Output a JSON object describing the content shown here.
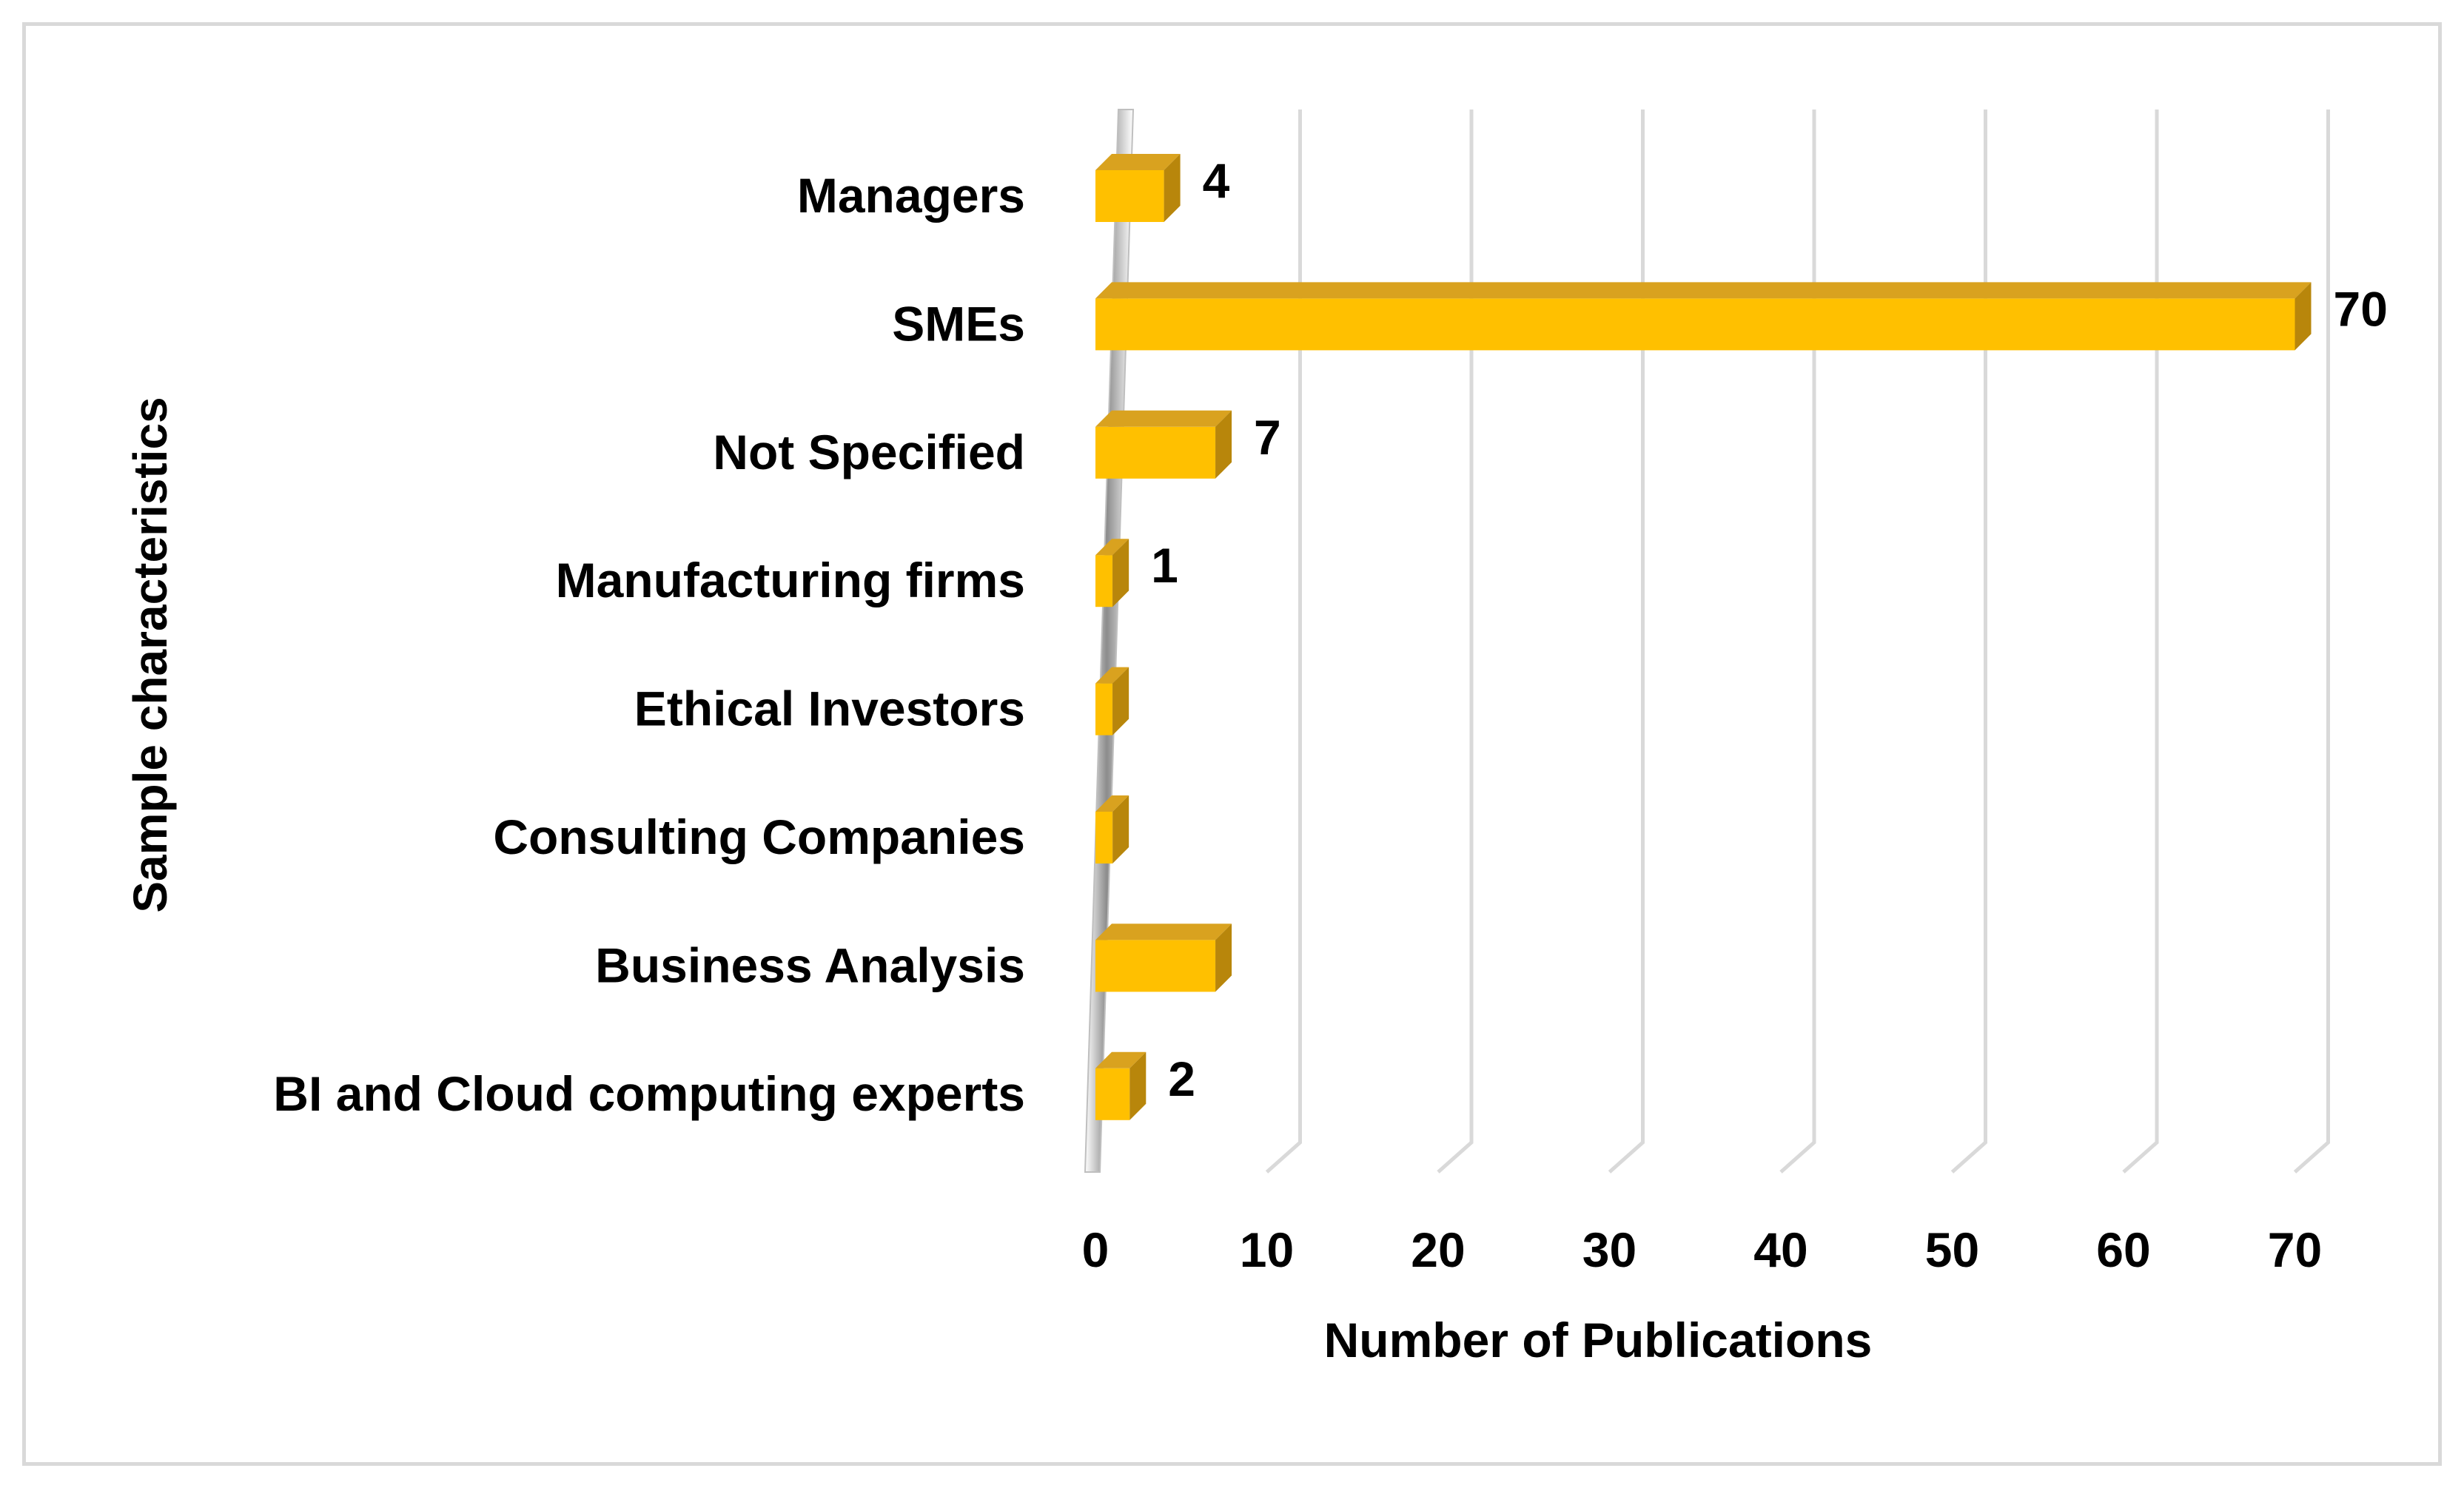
{
  "chart_data": {
    "type": "bar",
    "orientation": "horizontal",
    "style": "3d",
    "title": "",
    "xlabel": "Number of Publications",
    "ylabel": "Sample characteristics",
    "xlim": [
      0,
      70
    ],
    "x_ticks": [
      "0",
      "10",
      "20",
      "30",
      "40",
      "50",
      "60",
      "70"
    ],
    "grid": true,
    "legend": "none",
    "bar_color": "#ffc000",
    "bar_top_color": "#d9a21f",
    "bar_side_color": "#b8860b",
    "categories": [
      "Managers",
      "SMEs",
      "Not Specified",
      "Manufacturing firms",
      "Ethical Investors",
      "Consulting Companies",
      "Business Analysis",
      "BI and Cloud computing experts"
    ],
    "values": [
      4,
      70,
      7,
      1,
      1,
      1,
      7,
      2
    ],
    "data_labels": [
      "4",
      "70",
      "7",
      "1",
      "",
      "",
      "",
      "2"
    ]
  }
}
